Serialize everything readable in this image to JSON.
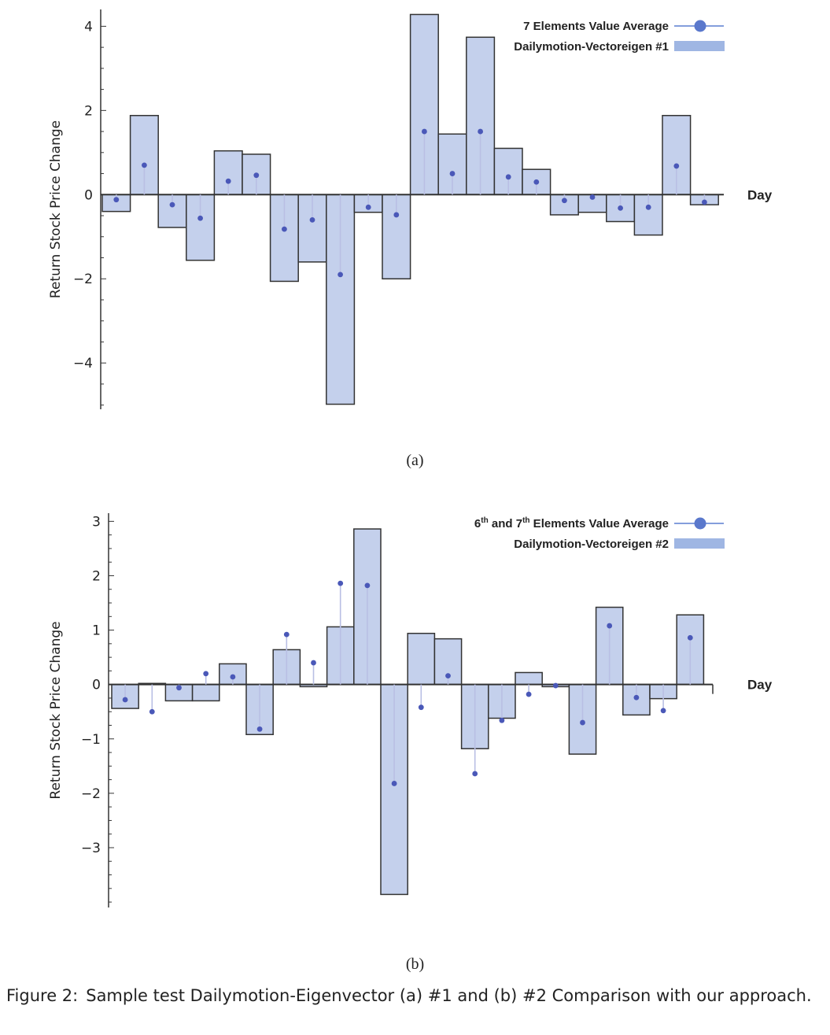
{
  "chart_data": [
    {
      "type": "bar",
      "panel_label": "(a)",
      "ylabel": "Return Stock Price Change",
      "xlabel": "Day",
      "ylim": [
        -5.1,
        4.4
      ],
      "yticks": [
        4,
        2,
        0,
        -2,
        -4
      ],
      "ytick_labels": [
        "4",
        "2",
        "0",
        "−2",
        "−4"
      ],
      "legend": {
        "position": "top-right",
        "line_entry": "7 Elements Value Average",
        "bar_entry": "Dailymotion-Vectoreigen #1"
      },
      "series": [
        {
          "name": "Dailymotion-Vectoreigen #1",
          "kind": "bar",
          "values": [
            -0.4,
            1.88,
            -0.78,
            -1.56,
            1.04,
            0.96,
            -2.06,
            -1.6,
            -4.98,
            -0.42,
            -2.0,
            4.28,
            1.44,
            3.74,
            1.1,
            0.6,
            -0.48,
            -0.42,
            -0.64,
            -0.96,
            1.88,
            -0.24
          ]
        },
        {
          "name": "7 Elements Value Average",
          "kind": "stem",
          "values": [
            -0.12,
            0.7,
            -0.24,
            -0.56,
            0.32,
            0.46,
            -0.82,
            -0.6,
            -1.9,
            -0.3,
            -0.48,
            1.5,
            0.5,
            1.5,
            0.42,
            0.3,
            -0.14,
            -0.06,
            -0.32,
            -0.3,
            0.68,
            -0.18
          ]
        }
      ]
    },
    {
      "type": "bar",
      "panel_label": "(b)",
      "ylabel": "Return Stock Price Change",
      "xlabel": "Day",
      "ylim": [
        -4.1,
        3.15
      ],
      "yticks": [
        3,
        2,
        1,
        0,
        -1,
        -2,
        -3
      ],
      "ytick_labels": [
        "3",
        "2",
        "1",
        "0",
        "−1",
        "−2",
        "−3"
      ],
      "legend": {
        "position": "top-right",
        "line_entry_base": "6",
        "line_entry_sup1": "th",
        "line_entry_mid": " and 7",
        "line_entry_sup2": "th",
        "line_entry_tail": " Elements Value Average",
        "bar_entry": "Dailymotion-Vectoreigen #2"
      },
      "series": [
        {
          "name": "Dailymotion-Vectoreigen #2",
          "kind": "bar",
          "values": [
            -0.44,
            0.02,
            -0.3,
            -0.3,
            0.38,
            -0.92,
            0.64,
            -0.04,
            1.06,
            2.86,
            -3.86,
            0.94,
            0.84,
            -1.18,
            -0.62,
            0.22,
            -0.04,
            -1.28,
            1.42,
            -0.56,
            -0.26,
            1.28
          ]
        },
        {
          "name": "6th and 7th Elements Value Average",
          "kind": "stem",
          "values": [
            -0.28,
            -0.5,
            -0.06,
            0.2,
            0.14,
            -0.82,
            0.92,
            0.4,
            1.86,
            1.82,
            -1.82,
            -0.42,
            0.16,
            -1.64,
            -0.66,
            -0.18,
            -0.02,
            -0.7,
            1.08,
            -0.24,
            -0.48,
            0.86
          ]
        }
      ]
    }
  ],
  "caption": {
    "lead": "Figure 2:",
    "body": "Sample test Dailymotion-Eigenvector (a) #1 and (b) #2 Comparison with our approach."
  },
  "colors": {
    "bar_fill": "#c4d0ec",
    "bar_stroke": "#333333",
    "marker": "#4a58b8",
    "stem": "#b9bfe4",
    "legend_bar": "#9fb6e3",
    "legend_line": "#5b7fd0"
  }
}
